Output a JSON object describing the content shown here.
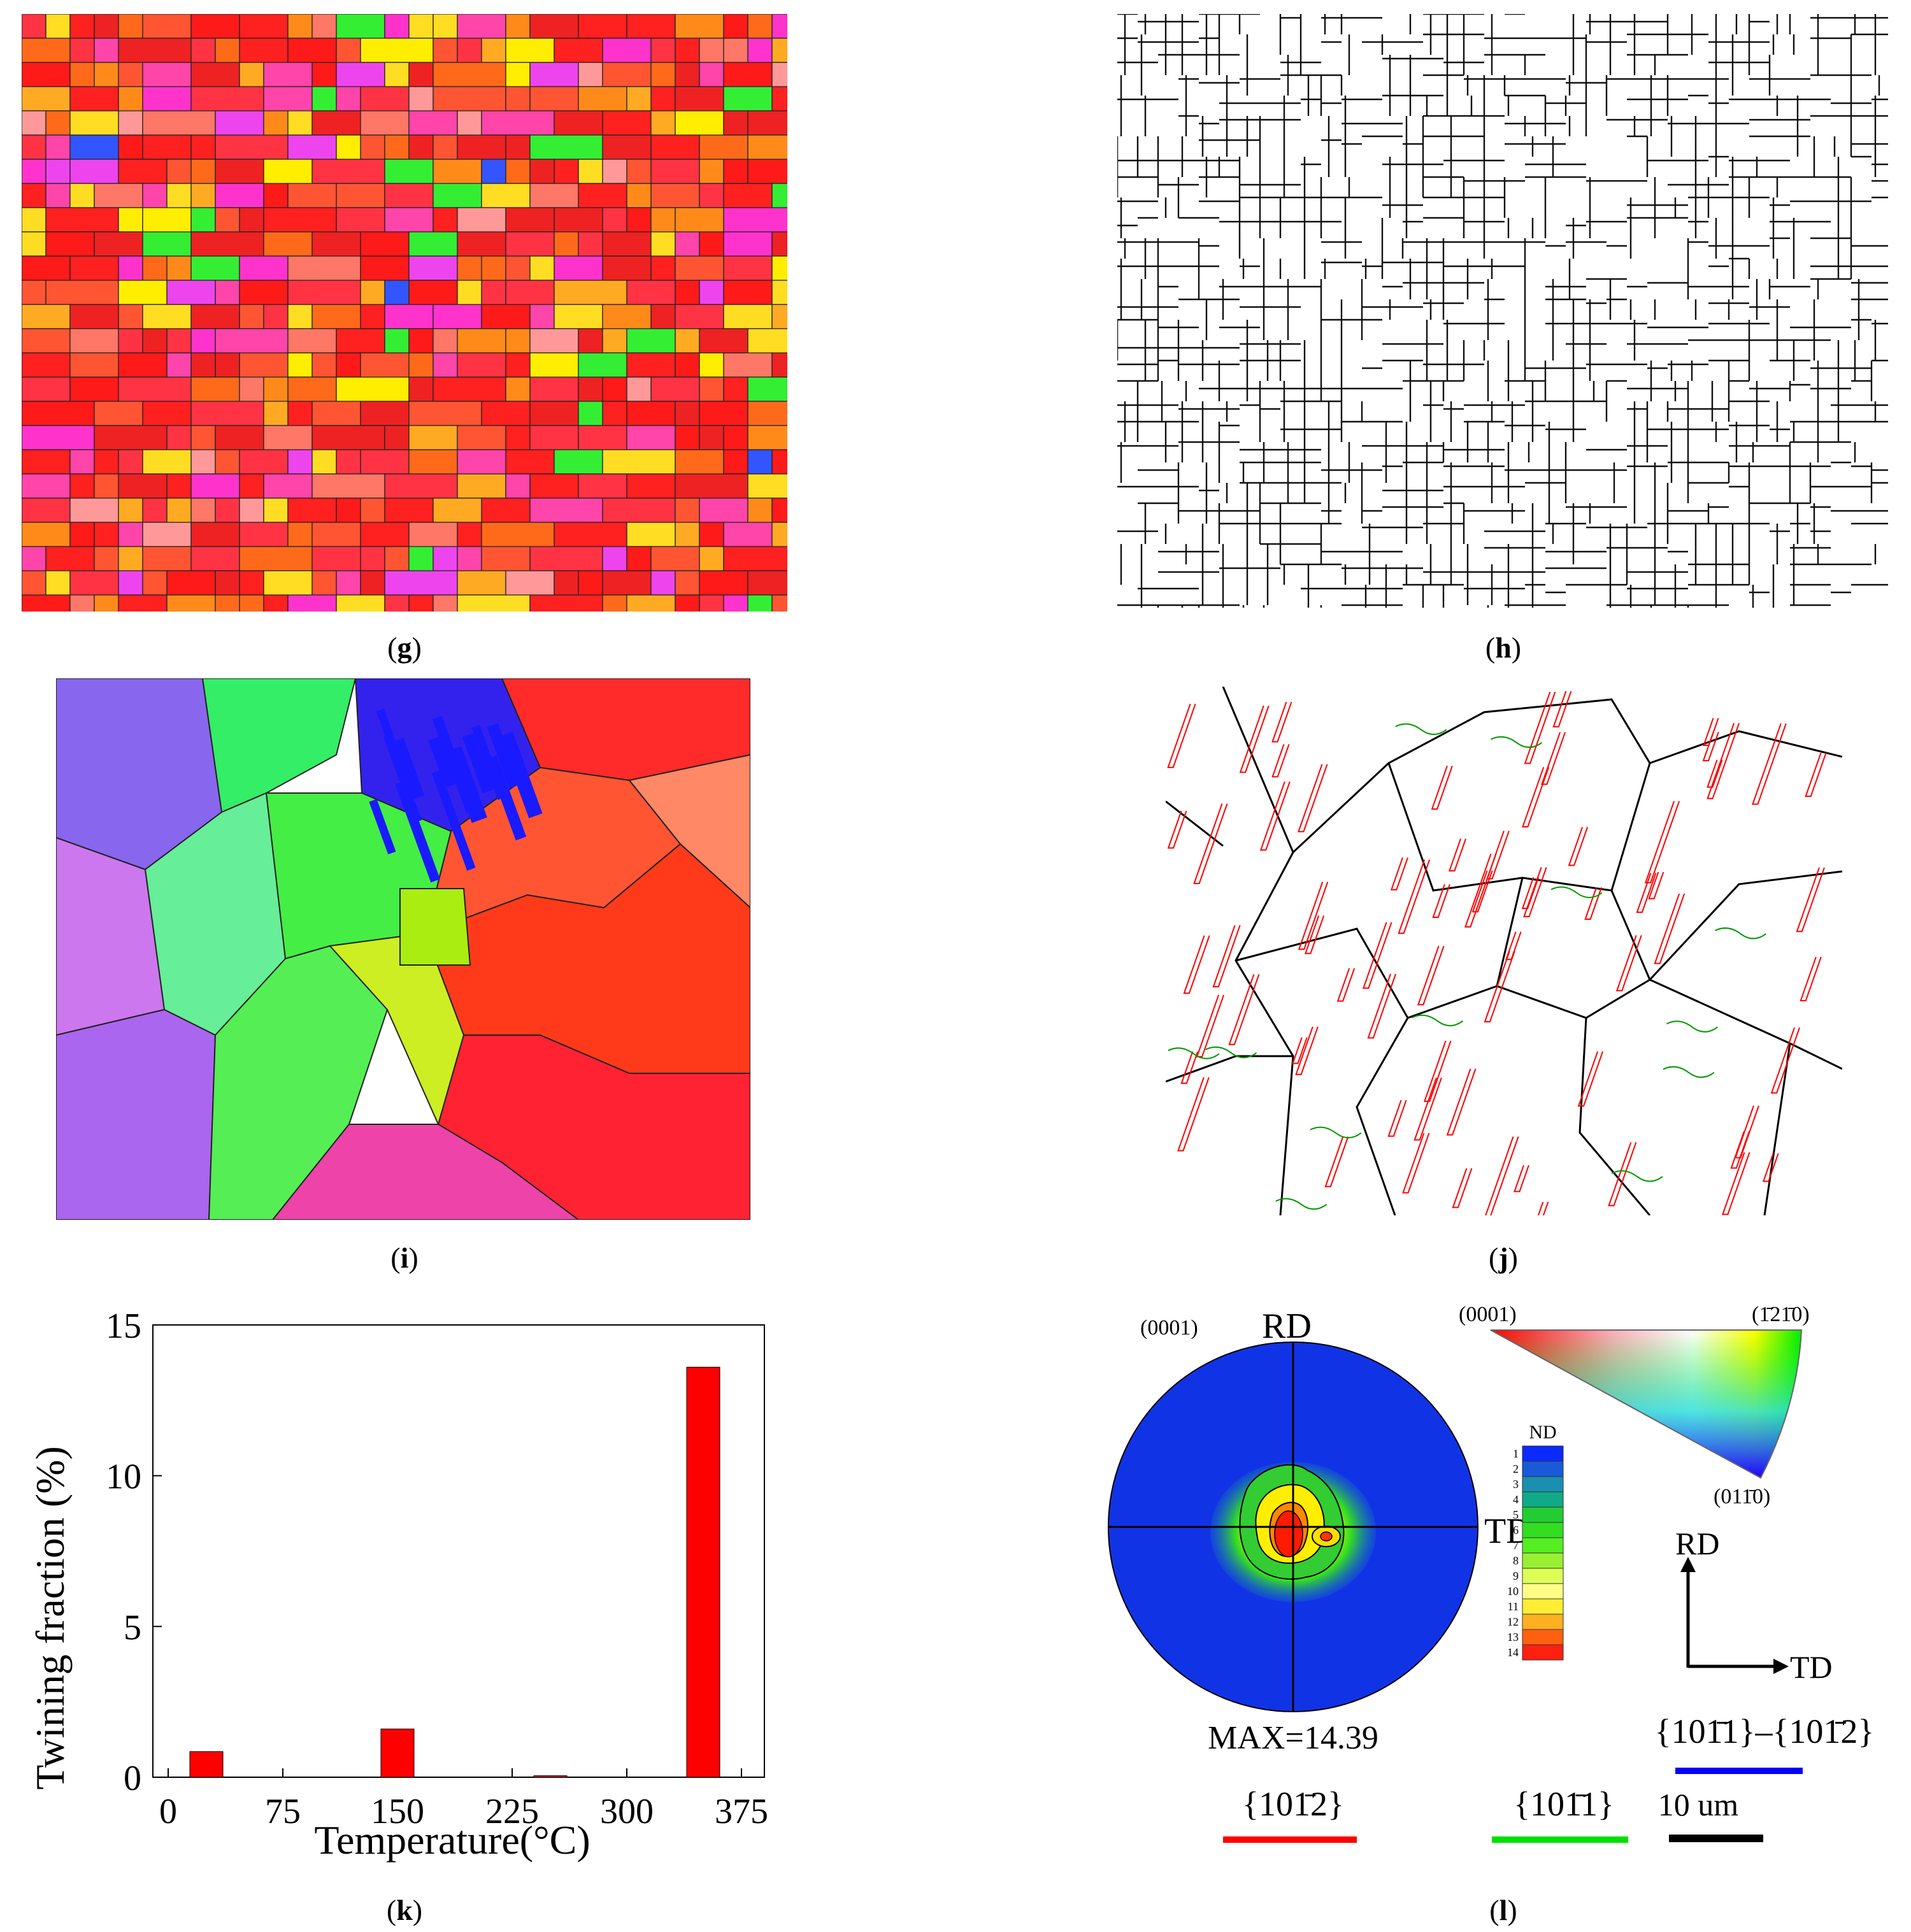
{
  "panel_labels": {
    "g": "g",
    "h": "h",
    "i": "i",
    "j": "j",
    "k": "k",
    "l": "l"
  },
  "chart_data": {
    "type": "bar",
    "xlabel": "Temperature(°C)",
    "ylabel": "Twining fraction (%)",
    "x_ticks": [
      "0",
      "75",
      "150",
      "225",
      "300",
      "375"
    ],
    "y_ticks": [
      "0",
      "5",
      "10",
      "15"
    ],
    "xlim": [
      -10,
      390
    ],
    "ylim": [
      0,
      15
    ],
    "categories": [
      25,
      150,
      250,
      350
    ],
    "values": [
      0.85,
      1.6,
      0.05,
      13.6
    ],
    "bar_color": "#ff0000",
    "grid": false
  },
  "pole_figure": {
    "label_rd": "RD",
    "label_td": "TD",
    "plane": "(0001)",
    "max_text": "MAX=14.39",
    "colorbar_title": "ND",
    "colorbar_levels": [
      "1",
      "2",
      "3",
      "4",
      "5",
      "6",
      "7",
      "8",
      "9",
      "10",
      "11",
      "12",
      "13",
      "14"
    ],
    "triangle_corners": [
      "(0001)",
      "(1̄21̄0)",
      "(011̄0)"
    ],
    "axes": {
      "rd": "RD",
      "td": "TD"
    },
    "legend": [
      {
        "text": "{101̄2}",
        "color": "#ff0000"
      },
      {
        "text": "{101̄1}",
        "color": "#00e000"
      },
      {
        "text": "{101̄1}–{101̄2}",
        "color": "#0000ff"
      },
      {
        "text": "10 um",
        "color": "#000000"
      }
    ]
  }
}
